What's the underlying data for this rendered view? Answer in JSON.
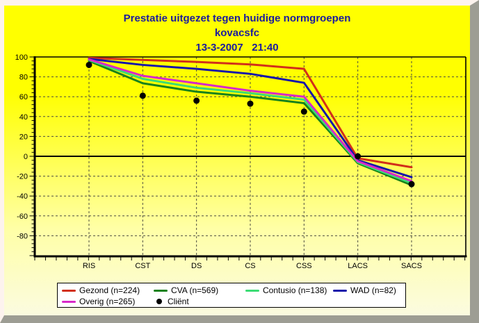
{
  "header": {
    "title_line1": "Prestatie uitgezet tegen huidige normgroepen",
    "title_line2": "kovacsfc",
    "title_line3": "13-3-2007   21:40"
  },
  "chart_data": {
    "type": "line",
    "title": "Prestatie uitgezet tegen huidige normgroepen",
    "subtitle": "kovacsfc",
    "datetime": "13-3-2007 21:40",
    "categories": [
      "RIS",
      "CST",
      "DS",
      "CS",
      "CSS",
      "LACS",
      "SACS"
    ],
    "series": [
      {
        "name": "Gezond (n=224)",
        "color": "#d2301a",
        "values": [
          99,
          97,
          95,
          92.5,
          88,
          -2,
          -11
        ]
      },
      {
        "name": "CVA (n=569)",
        "color": "#17821c",
        "values": [
          96,
          73.5,
          65,
          60,
          53.5,
          -7,
          -29
        ]
      },
      {
        "name": "Contusio (n=138)",
        "color": "#3bdc74",
        "values": [
          97,
          78,
          69,
          63.5,
          57,
          -6,
          -27
        ]
      },
      {
        "name": "WAD (n=82)",
        "color": "#1616aa",
        "values": [
          98,
          92,
          88,
          83,
          74,
          -4,
          -21
        ]
      },
      {
        "name": "Overig (n=265)",
        "color": "#d829c8",
        "values": [
          97.5,
          81,
          73.5,
          66,
          60,
          -5,
          -25
        ]
      }
    ],
    "client": {
      "name": "Cliënt",
      "color": "#000000",
      "values": [
        92,
        61,
        56,
        53,
        45,
        0,
        -28
      ]
    },
    "ylim": [
      -100,
      100
    ],
    "yticks": [
      100,
      80,
      60,
      40,
      20,
      0,
      -20,
      -40,
      -60,
      -80
    ],
    "grid": "dashed",
    "legend_position": "bottom"
  },
  "colors": {
    "title_text": "#1b1b9e",
    "background_top": "#ffff00",
    "background_bottom": "#fbfbe0",
    "plot_frame": "#000000",
    "grid_line": "#4d4d42",
    "legend_background": "#ffffff",
    "bevel_highlight": "#fdf3ee",
    "bevel_shadow": "#9d9d94"
  }
}
